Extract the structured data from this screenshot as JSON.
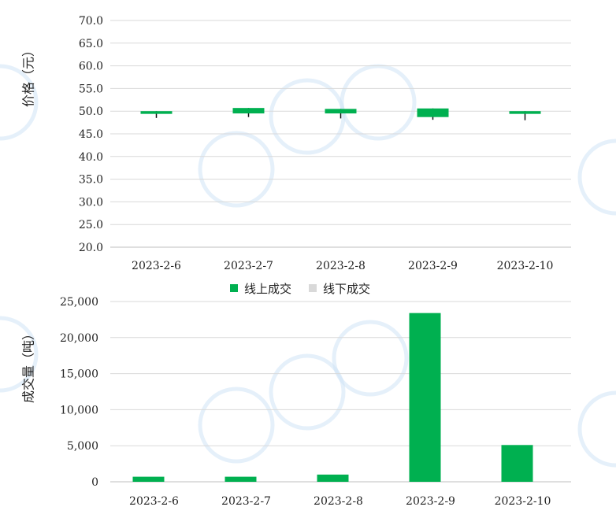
{
  "colors": {
    "online": "#00b050",
    "offline": "#d9d9d9",
    "grid": "#d9d9d9",
    "axis": "#bfbfbf",
    "watermark": "#cfe3f5"
  },
  "chart_data": [
    {
      "type": "candlestick",
      "ylabel": "价格（元）",
      "ylim": [
        20,
        70
      ],
      "ytick_step": 5,
      "ytick_labels": [
        "20.0",
        "25.0",
        "30.0",
        "35.0",
        "40.0",
        "45.0",
        "50.0",
        "55.0",
        "60.0",
        "65.0",
        "70.0"
      ],
      "grid": true,
      "categories": [
        "2023-2-6",
        "2023-2-7",
        "2023-2-8",
        "2023-2-9",
        "2023-2-10"
      ],
      "ohlc": [
        {
          "open": 49.4,
          "close": 50.0,
          "high": 50.0,
          "low": 48.5
        },
        {
          "open": 49.5,
          "close": 50.7,
          "high": 50.7,
          "low": 48.7
        },
        {
          "open": 49.5,
          "close": 50.5,
          "high": 50.5,
          "low": 48.4
        },
        {
          "open": 48.7,
          "close": 50.6,
          "high": 50.6,
          "low": 48.1
        },
        {
          "open": 49.4,
          "close": 50.0,
          "high": 50.0,
          "low": 48.0
        }
      ]
    },
    {
      "type": "bar",
      "ylabel": "成交量（吨）",
      "ylim": [
        0,
        25000
      ],
      "ytick_step": 5000,
      "ytick_labels": [
        "0",
        "5,000",
        "10,000",
        "15,000",
        "20,000",
        "25,000"
      ],
      "grid": true,
      "legend_position": "top-center",
      "categories": [
        "2023-2-6",
        "2023-2-7",
        "2023-2-8",
        "2023-2-9",
        "2023-2-10"
      ],
      "series": [
        {
          "name": "线上成交",
          "color": "#00b050",
          "values": [
            700,
            700,
            1000,
            23400,
            5100
          ]
        },
        {
          "name": "线下成交",
          "color": "#d9d9d9",
          "values": [
            0,
            0,
            0,
            0,
            0
          ]
        }
      ]
    }
  ]
}
